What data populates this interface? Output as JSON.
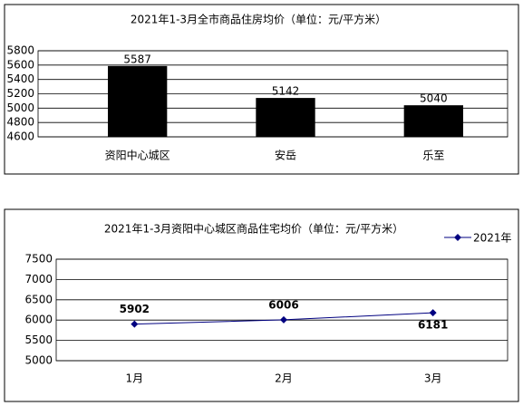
{
  "chart_data": [
    {
      "type": "bar",
      "title": "2021年1-3月全市商品住房均价（单位：元/平方米）",
      "categories": [
        "资阳中心城区",
        "安岳",
        "乐至"
      ],
      "values": [
        5587,
        5142,
        5040
      ],
      "color": "#000000",
      "ylim": [
        4600,
        5800
      ],
      "yticks": [
        4600,
        4800,
        5000,
        5200,
        5400,
        5600,
        5800
      ],
      "grid": true
    },
    {
      "type": "line",
      "title": "2021年1-3月资阳中心城区商品住宅均价（单位：元/平方米）",
      "categories": [
        "1月",
        "2月",
        "3月"
      ],
      "series": [
        {
          "name": "2021年",
          "color": "#000080",
          "values": [
            5902,
            6006,
            6181
          ]
        }
      ],
      "ylim": [
        5000,
        7500
      ],
      "yticks": [
        5000,
        5500,
        6000,
        6500,
        7000,
        7500
      ],
      "grid": true,
      "legend": "top-right"
    }
  ]
}
